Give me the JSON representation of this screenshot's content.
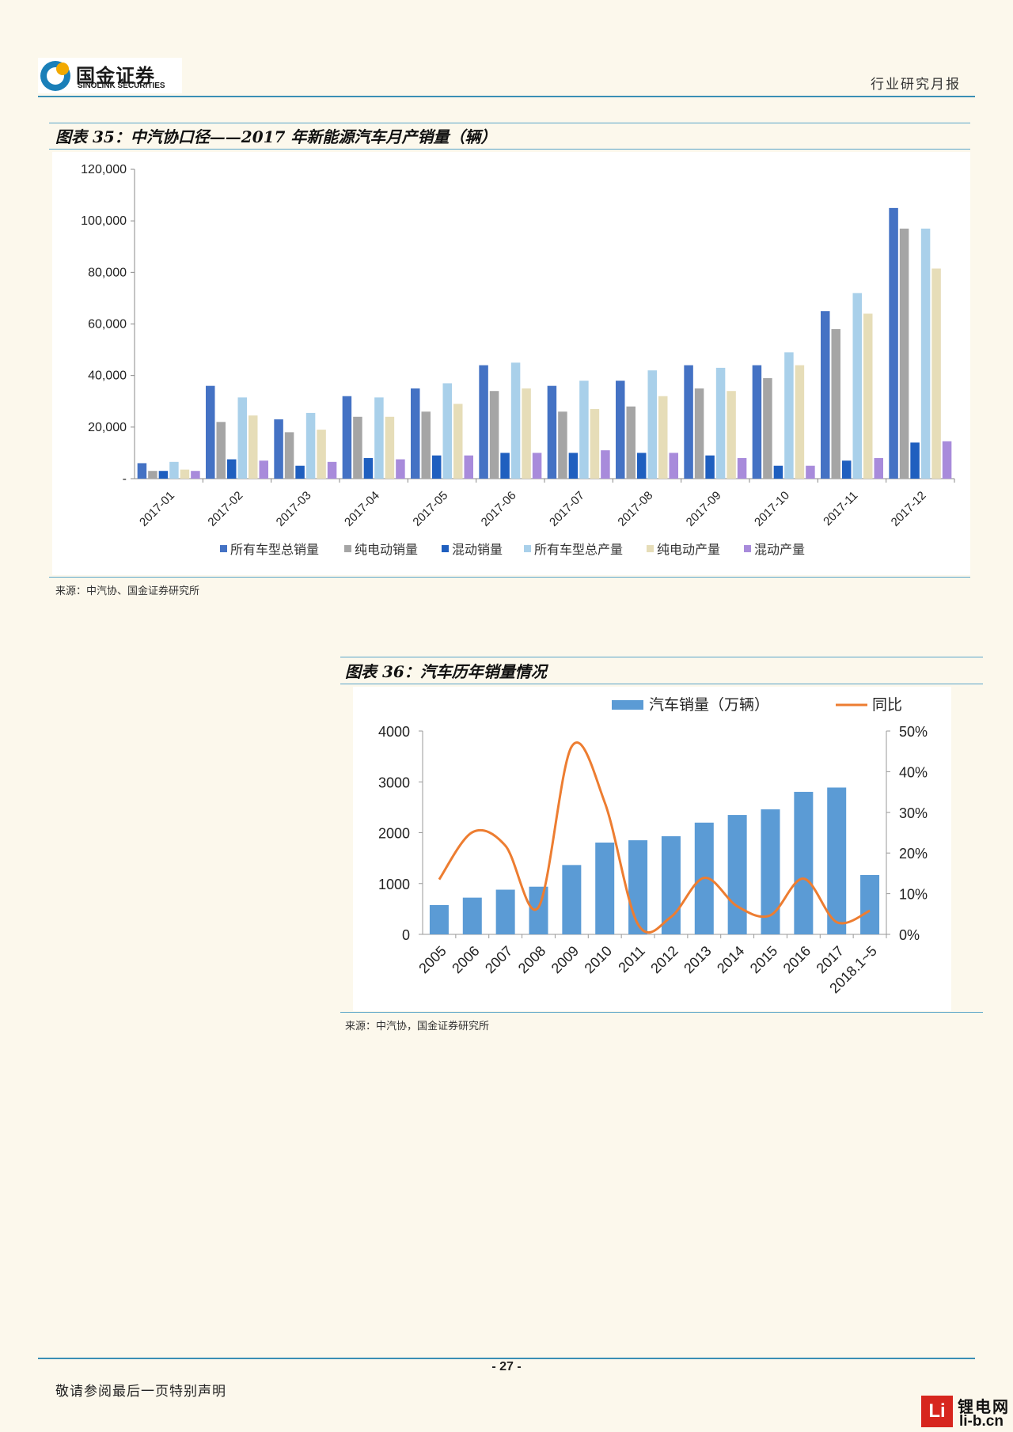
{
  "header": {
    "company_cn": "国金证券",
    "company_en": "SINOLINK SECURITIES",
    "report_type": "行业研究月报"
  },
  "figure35": {
    "title": "图表 35：中汽协口径——2017 年新能源汽车月产销量（辆）",
    "source": "来源：中汽协、国金证券研究所",
    "chart_data": {
      "type": "bar",
      "categories": [
        "2017-01",
        "2017-02",
        "2017-03",
        "2017-04",
        "2017-05",
        "2017-06",
        "2017-07",
        "2017-08",
        "2017-09",
        "2017-10",
        "2017-11",
        "2017-12"
      ],
      "ylim": [
        0,
        120000
      ],
      "yticks": [
        "-",
        "20,000",
        "40,000",
        "60,000",
        "80,000",
        "100,000",
        "120,000"
      ],
      "legend_position": "bottom",
      "series": [
        {
          "name": "所有车型总销量",
          "color": "#4472c4",
          "values": [
            6000,
            36000,
            23000,
            32000,
            35000,
            44000,
            36000,
            38000,
            44000,
            44000,
            65000,
            105000
          ]
        },
        {
          "name": "纯电动销量",
          "color": "#a5a5a5",
          "values": [
            3000,
            22000,
            18000,
            24000,
            26000,
            34000,
            26000,
            28000,
            35000,
            39000,
            58000,
            97000
          ]
        },
        {
          "name": "混动销量",
          "color": "#1f5fbf",
          "values": [
            3000,
            7500,
            5000,
            8000,
            9000,
            10000,
            10000,
            10000,
            9000,
            5000,
            7000,
            14000
          ]
        },
        {
          "name": "所有车型总产量",
          "color": "#a9d0ea",
          "values": [
            6500,
            31500,
            25500,
            31500,
            37000,
            45000,
            38000,
            42000,
            43000,
            49000,
            72000,
            97000
          ]
        },
        {
          "name": "纯电动产量",
          "color": "#e6ddb8",
          "values": [
            3500,
            24500,
            19000,
            24000,
            29000,
            35000,
            27000,
            32000,
            34000,
            44000,
            64000,
            81500
          ]
        },
        {
          "name": "混动产量",
          "color": "#a88bdb",
          "values": [
            3000,
            7000,
            6500,
            7500,
            9000,
            10000,
            11000,
            10000,
            8000,
            5000,
            8000,
            14500
          ]
        }
      ]
    }
  },
  "figure36": {
    "title": "图表 36：汽车历年销量情况",
    "source": "来源：中汽协，国金证券研究所",
    "chart_data": {
      "type": "bar",
      "categories": [
        "2005",
        "2006",
        "2007",
        "2008",
        "2009",
        "2010",
        "2011",
        "2012",
        "2013",
        "2014",
        "2015",
        "2016",
        "2017",
        "2018.1~5"
      ],
      "ylim": [
        0,
        4000
      ],
      "yticks": [
        "0",
        "1000",
        "2000",
        "3000",
        "4000"
      ],
      "y2lim": [
        0,
        50
      ],
      "y2ticks": [
        "0%",
        "10%",
        "20%",
        "30%",
        "40%",
        "50%"
      ],
      "legend_position": "top",
      "series": [
        {
          "name": "汽车销量（万辆）",
          "type": "bar",
          "color": "#5b9bd5",
          "values": [
            576,
            722,
            879,
            938,
            1364,
            1806,
            1851,
            1931,
            2198,
            2349,
            2460,
            2803,
            2888,
            1168
          ]
        },
        {
          "name": "同比",
          "type": "line",
          "axis": "right",
          "color": "#ed7d31",
          "values": [
            13.5,
            25.1,
            21.8,
            6.7,
            46.2,
            32.4,
            2.5,
            4.3,
            13.9,
            6.9,
            4.7,
            13.7,
            3.0,
            5.8
          ]
        }
      ]
    }
  },
  "footer": {
    "page_number": "- 27 -",
    "disclaimer": "敬请参阅最后一页特别声明",
    "watermark_cn": "锂电网",
    "watermark_en": "li-b.cn",
    "watermark_logo": "Li"
  }
}
